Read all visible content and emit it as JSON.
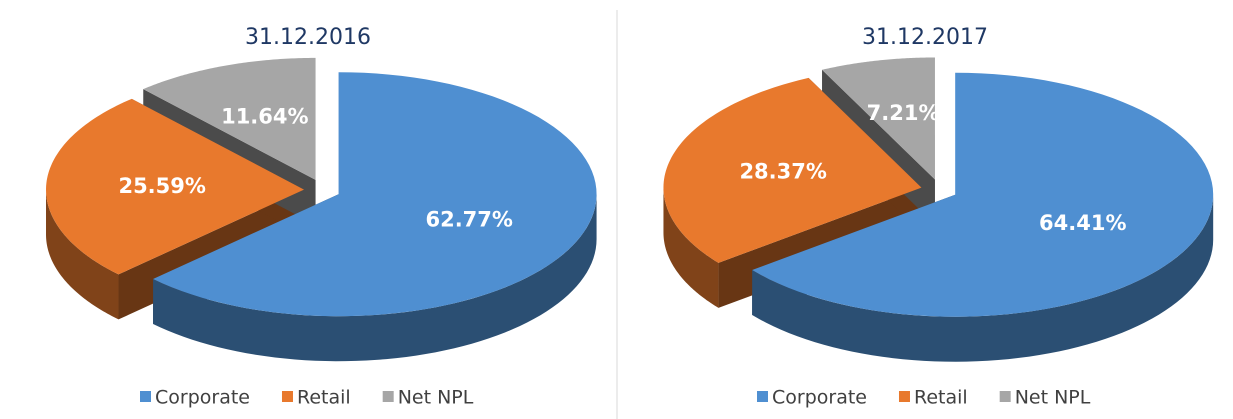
{
  "chart_data": [
    {
      "type": "pie3d",
      "title": "31.12.2016",
      "categories": [
        "Corporate",
        "Retail",
        "Net NPL"
      ],
      "values": [
        62.77,
        25.59,
        11.64
      ],
      "value_labels": [
        "62.77%",
        "25.59%",
        "11.64%"
      ],
      "colors": [
        "#4f8fd1",
        "#e8792d",
        "#a6a6a6"
      ],
      "legend": "bottom"
    },
    {
      "type": "pie3d",
      "title": "31.12.2017",
      "categories": [
        "Corporate",
        "Retail",
        "Net NPL"
      ],
      "values": [
        64.41,
        28.37,
        7.21
      ],
      "value_labels": [
        "64.41%",
        "28.37%",
        "7.21%"
      ],
      "colors": [
        "#4f8fd1",
        "#e8792d",
        "#a6a6a6"
      ],
      "legend": "bottom"
    }
  ]
}
